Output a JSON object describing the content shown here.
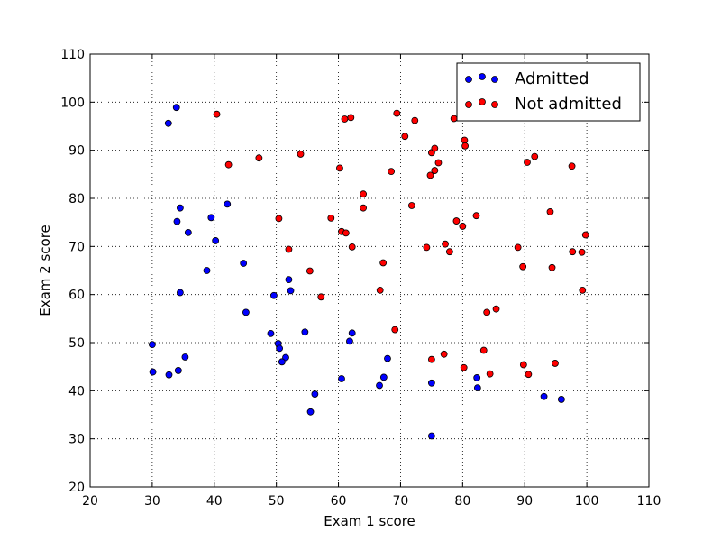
{
  "chart_data": {
    "type": "scatter",
    "title": "",
    "xlabel": "Exam 1 score",
    "ylabel": "Exam 2 score",
    "xlim": [
      20,
      110
    ],
    "ylim": [
      20,
      110
    ],
    "xticks": [
      "20",
      "30",
      "40",
      "50",
      "60",
      "70",
      "80",
      "90",
      "100",
      "110"
    ],
    "yticks": [
      "20",
      "30",
      "40",
      "50",
      "60",
      "70",
      "80",
      "90",
      "100",
      "110"
    ],
    "grid": true,
    "legend_position": "top-right",
    "series": [
      {
        "name": "Admitted",
        "color": "#0000ff",
        "points": [
          [
            33.9,
            98.9
          ],
          [
            32.6,
            95.6
          ],
          [
            34.5,
            78.0
          ],
          [
            34.0,
            75.2
          ],
          [
            35.8,
            72.9
          ],
          [
            39.5,
            76.0
          ],
          [
            42.1,
            78.8
          ],
          [
            40.2,
            71.2
          ],
          [
            38.8,
            65.0
          ],
          [
            44.7,
            66.5
          ],
          [
            34.5,
            60.4
          ],
          [
            45.1,
            56.3
          ],
          [
            49.6,
            59.8
          ],
          [
            52.0,
            63.1
          ],
          [
            52.3,
            60.8
          ],
          [
            30.0,
            49.6
          ],
          [
            30.1,
            43.9
          ],
          [
            32.7,
            43.3
          ],
          [
            34.2,
            44.2
          ],
          [
            35.3,
            47.0
          ],
          [
            49.1,
            51.9
          ],
          [
            50.3,
            49.8
          ],
          [
            50.5,
            48.8
          ],
          [
            51.5,
            46.9
          ],
          [
            50.9,
            46.0
          ],
          [
            54.6,
            52.2
          ],
          [
            56.2,
            39.3
          ],
          [
            55.5,
            35.6
          ],
          [
            60.5,
            42.5
          ],
          [
            61.8,
            50.3
          ],
          [
            62.2,
            52.0
          ],
          [
            66.6,
            41.1
          ],
          [
            67.3,
            42.8
          ],
          [
            67.9,
            46.7
          ],
          [
            75.0,
            41.6
          ],
          [
            75.0,
            30.6
          ],
          [
            82.3,
            42.7
          ],
          [
            82.4,
            40.6
          ],
          [
            93.1,
            38.8
          ],
          [
            95.9,
            38.2
          ]
        ]
      },
      {
        "name": "Not admitted",
        "color": "#ff0000",
        "points": [
          [
            40.4,
            97.5
          ],
          [
            42.3,
            87.0
          ],
          [
            47.2,
            88.4
          ],
          [
            53.9,
            89.2
          ],
          [
            50.4,
            75.8
          ],
          [
            52.0,
            69.4
          ],
          [
            55.4,
            64.9
          ],
          [
            57.2,
            59.5
          ],
          [
            58.8,
            75.9
          ],
          [
            60.2,
            86.3
          ],
          [
            60.5,
            73.1
          ],
          [
            61.2,
            72.8
          ],
          [
            62.2,
            69.9
          ],
          [
            61.0,
            96.5
          ],
          [
            62.0,
            96.8
          ],
          [
            64.0,
            80.9
          ],
          [
            64.0,
            78.0
          ],
          [
            66.7,
            60.9
          ],
          [
            67.2,
            66.6
          ],
          [
            68.5,
            85.6
          ],
          [
            69.1,
            52.7
          ],
          [
            69.4,
            97.7
          ],
          [
            70.7,
            92.9
          ],
          [
            71.8,
            78.5
          ],
          [
            72.3,
            96.2
          ],
          [
            74.2,
            69.8
          ],
          [
            74.8,
            84.8
          ],
          [
            75.0,
            89.5
          ],
          [
            75.5,
            90.4
          ],
          [
            75.5,
            85.8
          ],
          [
            76.1,
            87.4
          ],
          [
            77.2,
            70.5
          ],
          [
            77.9,
            68.9
          ],
          [
            78.6,
            96.6
          ],
          [
            79.0,
            75.3
          ],
          [
            80.0,
            74.2
          ],
          [
            80.3,
            92.1
          ],
          [
            80.4,
            90.9
          ],
          [
            82.2,
            76.4
          ],
          [
            83.9,
            56.3
          ],
          [
            85.4,
            57.0
          ],
          [
            75.0,
            46.5
          ],
          [
            77.0,
            47.6
          ],
          [
            80.2,
            44.8
          ],
          [
            83.4,
            48.4
          ],
          [
            84.4,
            43.5
          ],
          [
            88.9,
            69.8
          ],
          [
            89.7,
            65.8
          ],
          [
            90.4,
            87.5
          ],
          [
            91.6,
            88.7
          ],
          [
            89.8,
            45.4
          ],
          [
            90.6,
            43.4
          ],
          [
            94.1,
            77.2
          ],
          [
            94.4,
            65.6
          ],
          [
            94.9,
            45.7
          ],
          [
            97.6,
            86.7
          ],
          [
            97.7,
            68.9
          ],
          [
            99.2,
            68.8
          ],
          [
            99.3,
            60.9
          ],
          [
            99.8,
            72.4
          ]
        ]
      }
    ]
  }
}
